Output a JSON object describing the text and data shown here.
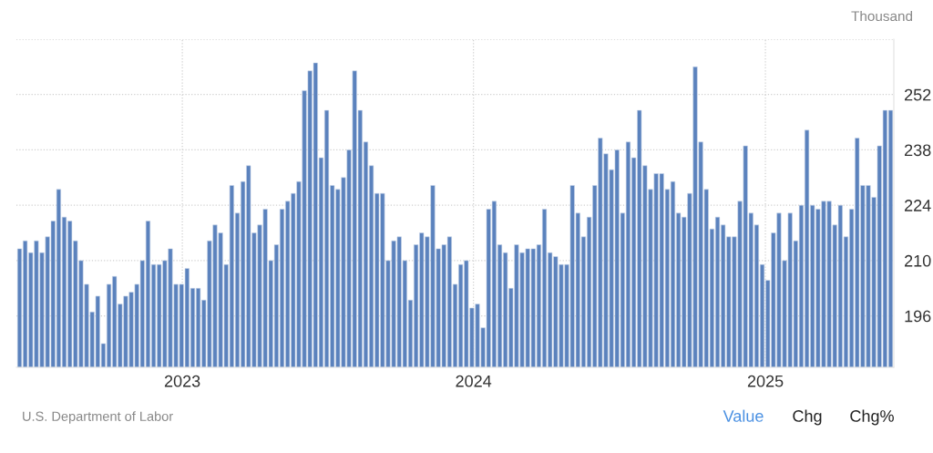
{
  "chart_data": {
    "type": "bar",
    "ylabel": "Thousand",
    "x": [
      "2022-06-11",
      "2022-06-18",
      "2022-06-25",
      "2022-07-02",
      "2022-07-09",
      "2022-07-16",
      "2022-07-23",
      "2022-07-30",
      "2022-08-06",
      "2022-08-13",
      "2022-08-20",
      "2022-08-27",
      "2022-09-03",
      "2022-09-10",
      "2022-09-17",
      "2022-09-24",
      "2022-10-01",
      "2022-10-08",
      "2022-10-15",
      "2022-10-22",
      "2022-10-29",
      "2022-11-05",
      "2022-11-12",
      "2022-11-19",
      "2022-11-26",
      "2022-12-03",
      "2022-12-10",
      "2022-12-17",
      "2022-12-24",
      "2022-12-31",
      "2023-01-07",
      "2023-01-14",
      "2023-01-21",
      "2023-01-28",
      "2023-02-04",
      "2023-02-11",
      "2023-02-18",
      "2023-02-25",
      "2023-03-04",
      "2023-03-11",
      "2023-03-18",
      "2023-03-25",
      "2023-04-01",
      "2023-04-08",
      "2023-04-15",
      "2023-04-22",
      "2023-04-29",
      "2023-05-06",
      "2023-05-13",
      "2023-05-20",
      "2023-05-27",
      "2023-06-03",
      "2023-06-10",
      "2023-06-17",
      "2023-06-24",
      "2023-07-01",
      "2023-07-08",
      "2023-07-15",
      "2023-07-22",
      "2023-07-29",
      "2023-08-05",
      "2023-08-12",
      "2023-08-19",
      "2023-08-26",
      "2023-09-02",
      "2023-09-09",
      "2023-09-16",
      "2023-09-23",
      "2023-09-30",
      "2023-10-07",
      "2023-10-14",
      "2023-10-21",
      "2023-10-28",
      "2023-11-04",
      "2023-11-11",
      "2023-11-18",
      "2023-11-25",
      "2023-12-02",
      "2023-12-09",
      "2023-12-16",
      "2023-12-23",
      "2023-12-30",
      "2024-01-06",
      "2024-01-13",
      "2024-01-20",
      "2024-01-27",
      "2024-02-03",
      "2024-02-10",
      "2024-02-17",
      "2024-02-24",
      "2024-03-02",
      "2024-03-09",
      "2024-03-16",
      "2024-03-23",
      "2024-03-30",
      "2024-04-06",
      "2024-04-13",
      "2024-04-20",
      "2024-04-27",
      "2024-05-04",
      "2024-05-11",
      "2024-05-18",
      "2024-05-25",
      "2024-06-01",
      "2024-06-08",
      "2024-06-15",
      "2024-06-22",
      "2024-06-29",
      "2024-07-06",
      "2024-07-13",
      "2024-07-20",
      "2024-07-27",
      "2024-08-03",
      "2024-08-10",
      "2024-08-17",
      "2024-08-24",
      "2024-08-31",
      "2024-09-07",
      "2024-09-14",
      "2024-09-21",
      "2024-09-28",
      "2024-10-05",
      "2024-10-12",
      "2024-10-19",
      "2024-10-26",
      "2024-11-02",
      "2024-11-09",
      "2024-11-16",
      "2024-11-23",
      "2024-11-30",
      "2024-12-07",
      "2024-12-14",
      "2024-12-21",
      "2024-12-28",
      "2025-01-04",
      "2025-01-11",
      "2025-01-18",
      "2025-01-25",
      "2025-02-01",
      "2025-02-08",
      "2025-02-15",
      "2025-02-22",
      "2025-03-01",
      "2025-03-08",
      "2025-03-15",
      "2025-03-22",
      "2025-03-29",
      "2025-04-05",
      "2025-04-12",
      "2025-04-19",
      "2025-04-26",
      "2025-05-03",
      "2025-05-10",
      "2025-05-17",
      "2025-05-24",
      "2025-05-31",
      "2025-06-07"
    ],
    "values": [
      213,
      215,
      212,
      215,
      212,
      216,
      220,
      228,
      221,
      220,
      215,
      210,
      204,
      197,
      201,
      189,
      204,
      206,
      199,
      201,
      202,
      204,
      210,
      220,
      209,
      209,
      210,
      213,
      204,
      204,
      208,
      203,
      203,
      200,
      215,
      219,
      217,
      209,
      229,
      222,
      230,
      234,
      217,
      219,
      223,
      210,
      214,
      223,
      225,
      227,
      230,
      253,
      258,
      260,
      236,
      248,
      229,
      228,
      231,
      238,
      258,
      248,
      240,
      234,
      227,
      227,
      210,
      215,
      216,
      210,
      200,
      214,
      217,
      216,
      229,
      213,
      214,
      216,
      204,
      209,
      210,
      198,
      199,
      193,
      223,
      225,
      214,
      212,
      203,
      214,
      212,
      213,
      213,
      214,
      223,
      212,
      211,
      209,
      209,
      229,
      222,
      216,
      221,
      229,
      241,
      237,
      233,
      238,
      222,
      240,
      236,
      248,
      234,
      228,
      232,
      232,
      228,
      230,
      222,
      221,
      227,
      259,
      240,
      228,
      218,
      221,
      219,
      216,
      216,
      225,
      239,
      222,
      219,
      209,
      205,
      217,
      222,
      210,
      222,
      215,
      224,
      243,
      224,
      223,
      225,
      225,
      219,
      224,
      216,
      223,
      241,
      229,
      229,
      226,
      239,
      248,
      248
    ],
    "color": "#5b82bd",
    "xlim": [
      "2022-06-07",
      "2025-06-11"
    ],
    "xticks": [
      {
        "value": "2023-01-01",
        "label": "2023"
      },
      {
        "value": "2024-01-01",
        "label": "2024"
      },
      {
        "value": "2025-01-01",
        "label": "2025"
      }
    ],
    "ylim": [
      183,
      266
    ],
    "yticks": [
      196,
      210,
      224,
      238,
      252,
      {
        "value": 266,
        "label": null
      }
    ],
    "grid": true,
    "annotations": [
      "U.S. Department of Labor",
      "Value",
      "Chg",
      "Chg%"
    ]
  }
}
